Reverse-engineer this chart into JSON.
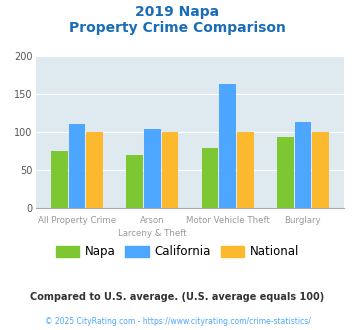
{
  "title_line1": "2019 Napa",
  "title_line2": "Property Crime Comparison",
  "cat_labels_top": [
    "All Property Crime",
    "Arson",
    "Motor Vehicle Theft",
    "Burglary"
  ],
  "cat_labels_bot": [
    "",
    "Larceny & Theft",
    "",
    ""
  ],
  "napa": [
    75,
    70,
    79,
    93
  ],
  "california": [
    110,
    104,
    163,
    113
  ],
  "national": [
    100,
    100,
    100,
    100
  ],
  "bar_colors": {
    "napa": "#7dc832",
    "california": "#4da6ff",
    "national": "#fdb92e"
  },
  "ylim": [
    0,
    200
  ],
  "yticks": [
    0,
    50,
    100,
    150,
    200
  ],
  "background_color": "#deeaf0",
  "title_color": "#1a6db5",
  "xtick_color": "#999999",
  "legend_labels": [
    "Napa",
    "California",
    "National"
  ],
  "footnote1": "Compared to U.S. average. (U.S. average equals 100)",
  "footnote2": "© 2025 CityRating.com - https://www.cityrating.com/crime-statistics/",
  "footnote1_color": "#333333",
  "footnote2_color": "#4da6ff"
}
